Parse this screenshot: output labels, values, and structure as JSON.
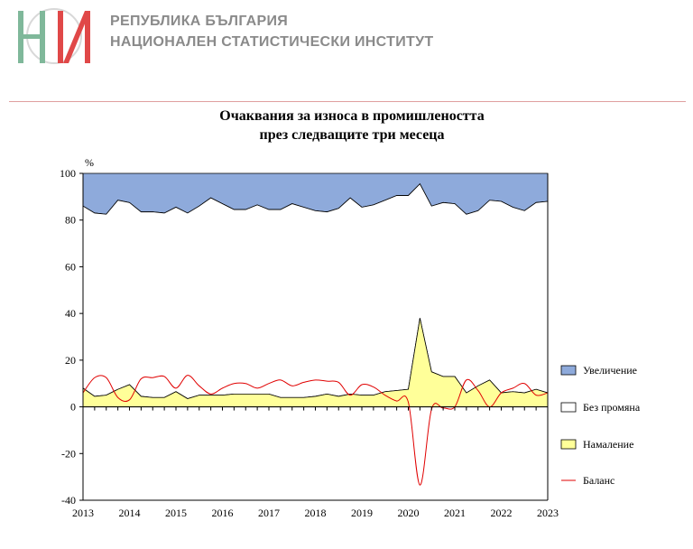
{
  "header": {
    "org_line1": "РЕПУБЛИКА БЪЛГАРИЯ",
    "org_line2": "НАЦИОНАЛЕН СТАТИСТИЧЕСКИ ИНСТИТУТ",
    "logo_text": "НИ"
  },
  "colors": {
    "increase": "#8eaadb",
    "no_change": "#ffffff",
    "decrease": "#ffff99",
    "balance": "#e00000",
    "logo_green": "#7fb89a",
    "logo_red": "#e04848"
  },
  "chart_data": {
    "type": "area",
    "title_line1": "Очаквания за износа в промишлеността",
    "title_line2": "през следващите три месеца",
    "ylabel": "%",
    "ylim": [
      -40,
      100
    ],
    "yticks": [
      "100",
      "80",
      "60",
      "40",
      "20",
      "0",
      "-20",
      "-40"
    ],
    "xticks": [
      "2013",
      "2014",
      "2015",
      "2016",
      "2017",
      "2018",
      "2019",
      "2020",
      "2021",
      "2022",
      "2023"
    ],
    "x_quarters": 41,
    "series": [
      {
        "name": "Увеличение",
        "role": "increase",
        "values": [
          14,
          17,
          17.5,
          11.5,
          12.5,
          16.5,
          16.5,
          17,
          14.5,
          17,
          14,
          10.5,
          13,
          15.5,
          15.5,
          13.5,
          15.5,
          15.5,
          13,
          14.5,
          16,
          16.5,
          15,
          10.5,
          14.5,
          13.5,
          11.5,
          9.5,
          9.5,
          4.5,
          14,
          12.5,
          13,
          17.5,
          16,
          11.5,
          12,
          14.5,
          16,
          12.5,
          12
        ]
      },
      {
        "name": "Без промяна",
        "role": "no_change",
        "values": [
          78,
          78.5,
          77.5,
          81,
          78,
          79,
          79.5,
          79,
          79,
          79.5,
          81,
          84.5,
          82,
          79,
          79,
          81,
          79,
          80.5,
          83,
          81.5,
          79.5,
          78,
          80.5,
          84,
          80.5,
          81.5,
          82,
          83.5,
          83,
          57.5,
          71,
          74.5,
          74,
          76.5,
          75,
          77,
          82,
          79,
          78,
          80,
          82
        ]
      },
      {
        "name": "Намаление",
        "role": "decrease",
        "values": [
          8,
          4.5,
          5,
          7.5,
          9.5,
          4.5,
          4,
          4,
          6.5,
          3.5,
          5,
          5,
          5,
          5.5,
          5.5,
          5.5,
          5.5,
          4,
          4,
          4,
          4.5,
          5.5,
          4.5,
          5.5,
          5,
          5,
          6.5,
          7,
          7.5,
          38,
          15,
          13,
          13,
          6,
          9,
          11.5,
          6,
          6.5,
          6,
          7.5,
          6
        ]
      },
      {
        "name": "Баланс",
        "role": "balance",
        "values": [
          6,
          12.5,
          12.5,
          4,
          3,
          12,
          12.5,
          13,
          8,
          13.5,
          9,
          5.5,
          8,
          10,
          10,
          8,
          10,
          11.5,
          9,
          10.5,
          11.5,
          11,
          10.5,
          5,
          9.5,
          8.5,
          5,
          2.5,
          2,
          -33.5,
          -1,
          -0.5,
          0,
          11.5,
          7,
          0,
          6,
          8,
          10,
          5,
          6
        ]
      }
    ],
    "legend_position": "right",
    "grid": false
  }
}
